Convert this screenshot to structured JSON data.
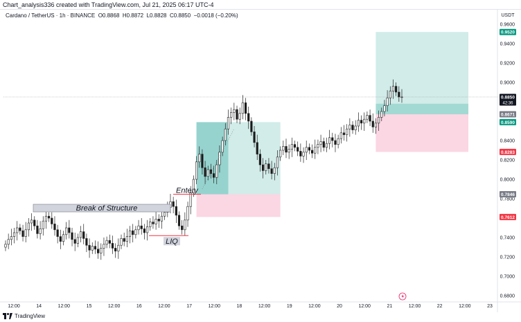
{
  "caption": "Chart_analysis336 created with TradingView.com, Jul 21, 2025 06:17 UTC-4",
  "legend": {
    "symbol": "Cardano / TetherUS · 1h · BINANCE",
    "open": "O0.8868",
    "high": "H0.8872",
    "low": "L0.8828",
    "close": "C0.8850",
    "change": "−0.0018 (−0.20%)"
  },
  "footer": {
    "brand": "TradingView"
  },
  "colors": {
    "up": "#4a4a4a",
    "down": "#1a1a1a",
    "target_zone": "#b2dfdb",
    "target_zone_dark": "#4db6ac",
    "stop_zone": "#f8bbd0",
    "price_line": "#9e9e9e",
    "last_price_label": "#131722",
    "target_label": "#089981",
    "stop_label": "#f23645",
    "neutral_label": "#787b86"
  },
  "chart_data": {
    "type": "candlestick",
    "currency": "USDT",
    "ylim": [
      0.675,
      0.965
    ],
    "x_ticks": [
      "12:00",
      "14",
      "12:00",
      "15",
      "12:00",
      "16",
      "12:00",
      "17",
      "12:00",
      "18",
      "12:00",
      "19",
      "12:00",
      "20",
      "12:00",
      "21",
      "12:00",
      "22",
      "12:00",
      "23"
    ],
    "y_ticks": [
      "0.9600",
      "0.9400",
      "0.9200",
      "0.9000",
      "0.8800",
      "0.8600",
      "0.8400",
      "0.8200",
      "0.8000",
      "0.7800",
      "0.7600",
      "0.7400",
      "0.7200",
      "0.7000",
      "0.6800"
    ],
    "price_labels": [
      {
        "value": 0.952,
        "text": "0.9520",
        "kind": "target"
      },
      {
        "value": 0.885,
        "text": "0.8850",
        "sub": "42:36",
        "kind": "last"
      },
      {
        "value": 0.8671,
        "text": "0.8671",
        "kind": "neutral"
      },
      {
        "value": 0.859,
        "text": "0.8590",
        "kind": "target"
      },
      {
        "value": 0.8283,
        "text": "0.8283",
        "kind": "stop"
      },
      {
        "value": 0.7846,
        "text": "0.7846",
        "kind": "neutral"
      },
      {
        "value": 0.7612,
        "text": "0.7612",
        "kind": "stop"
      }
    ],
    "annotations": [
      {
        "text": "Break of Structure",
        "price": 0.77
      },
      {
        "text": "Entery",
        "price": 0.7846
      },
      {
        "text": "LIQ",
        "price": 0.742
      }
    ],
    "positions": [
      {
        "name": "long-position-1",
        "entry": 0.7846,
        "target": 0.859,
        "stop": 0.7612
      },
      {
        "name": "long-position-2",
        "entry": 0.8671,
        "target": 0.952,
        "stop": 0.8283
      }
    ],
    "last_price": 0.885,
    "closes": [
      0.733,
      0.738,
      0.741,
      0.745,
      0.75,
      0.747,
      0.741,
      0.748,
      0.755,
      0.758,
      0.752,
      0.744,
      0.749,
      0.757,
      0.762,
      0.76,
      0.754,
      0.748,
      0.741,
      0.736,
      0.743,
      0.75,
      0.745,
      0.738,
      0.734,
      0.74,
      0.746,
      0.739,
      0.732,
      0.727,
      0.731,
      0.728,
      0.724,
      0.729,
      0.733,
      0.737,
      0.734,
      0.729,
      0.726,
      0.732,
      0.739,
      0.736,
      0.741,
      0.747,
      0.743,
      0.748,
      0.752,
      0.749,
      0.745,
      0.751,
      0.756,
      0.754,
      0.759,
      0.757,
      0.762,
      0.766,
      0.771,
      0.777,
      0.772,
      0.763,
      0.752,
      0.748,
      0.758,
      0.772,
      0.786,
      0.8,
      0.818,
      0.826,
      0.812,
      0.803,
      0.81,
      0.806,
      0.802,
      0.815,
      0.828,
      0.84,
      0.852,
      0.864,
      0.869,
      0.872,
      0.862,
      0.868,
      0.879,
      0.868,
      0.86,
      0.849,
      0.838,
      0.826,
      0.815,
      0.809,
      0.816,
      0.811,
      0.806,
      0.812,
      0.823,
      0.83,
      0.834,
      0.828,
      0.831,
      0.836,
      0.833,
      0.829,
      0.824,
      0.828,
      0.833,
      0.83,
      0.827,
      0.833,
      0.836,
      0.839,
      0.833,
      0.837,
      0.843,
      0.84,
      0.836,
      0.842,
      0.848,
      0.846,
      0.852,
      0.856,
      0.851,
      0.855,
      0.861,
      0.858,
      0.862,
      0.866,
      0.86,
      0.854,
      0.858,
      0.864,
      0.87,
      0.876,
      0.884,
      0.891,
      0.896,
      0.89,
      0.885,
      0.885
    ]
  }
}
